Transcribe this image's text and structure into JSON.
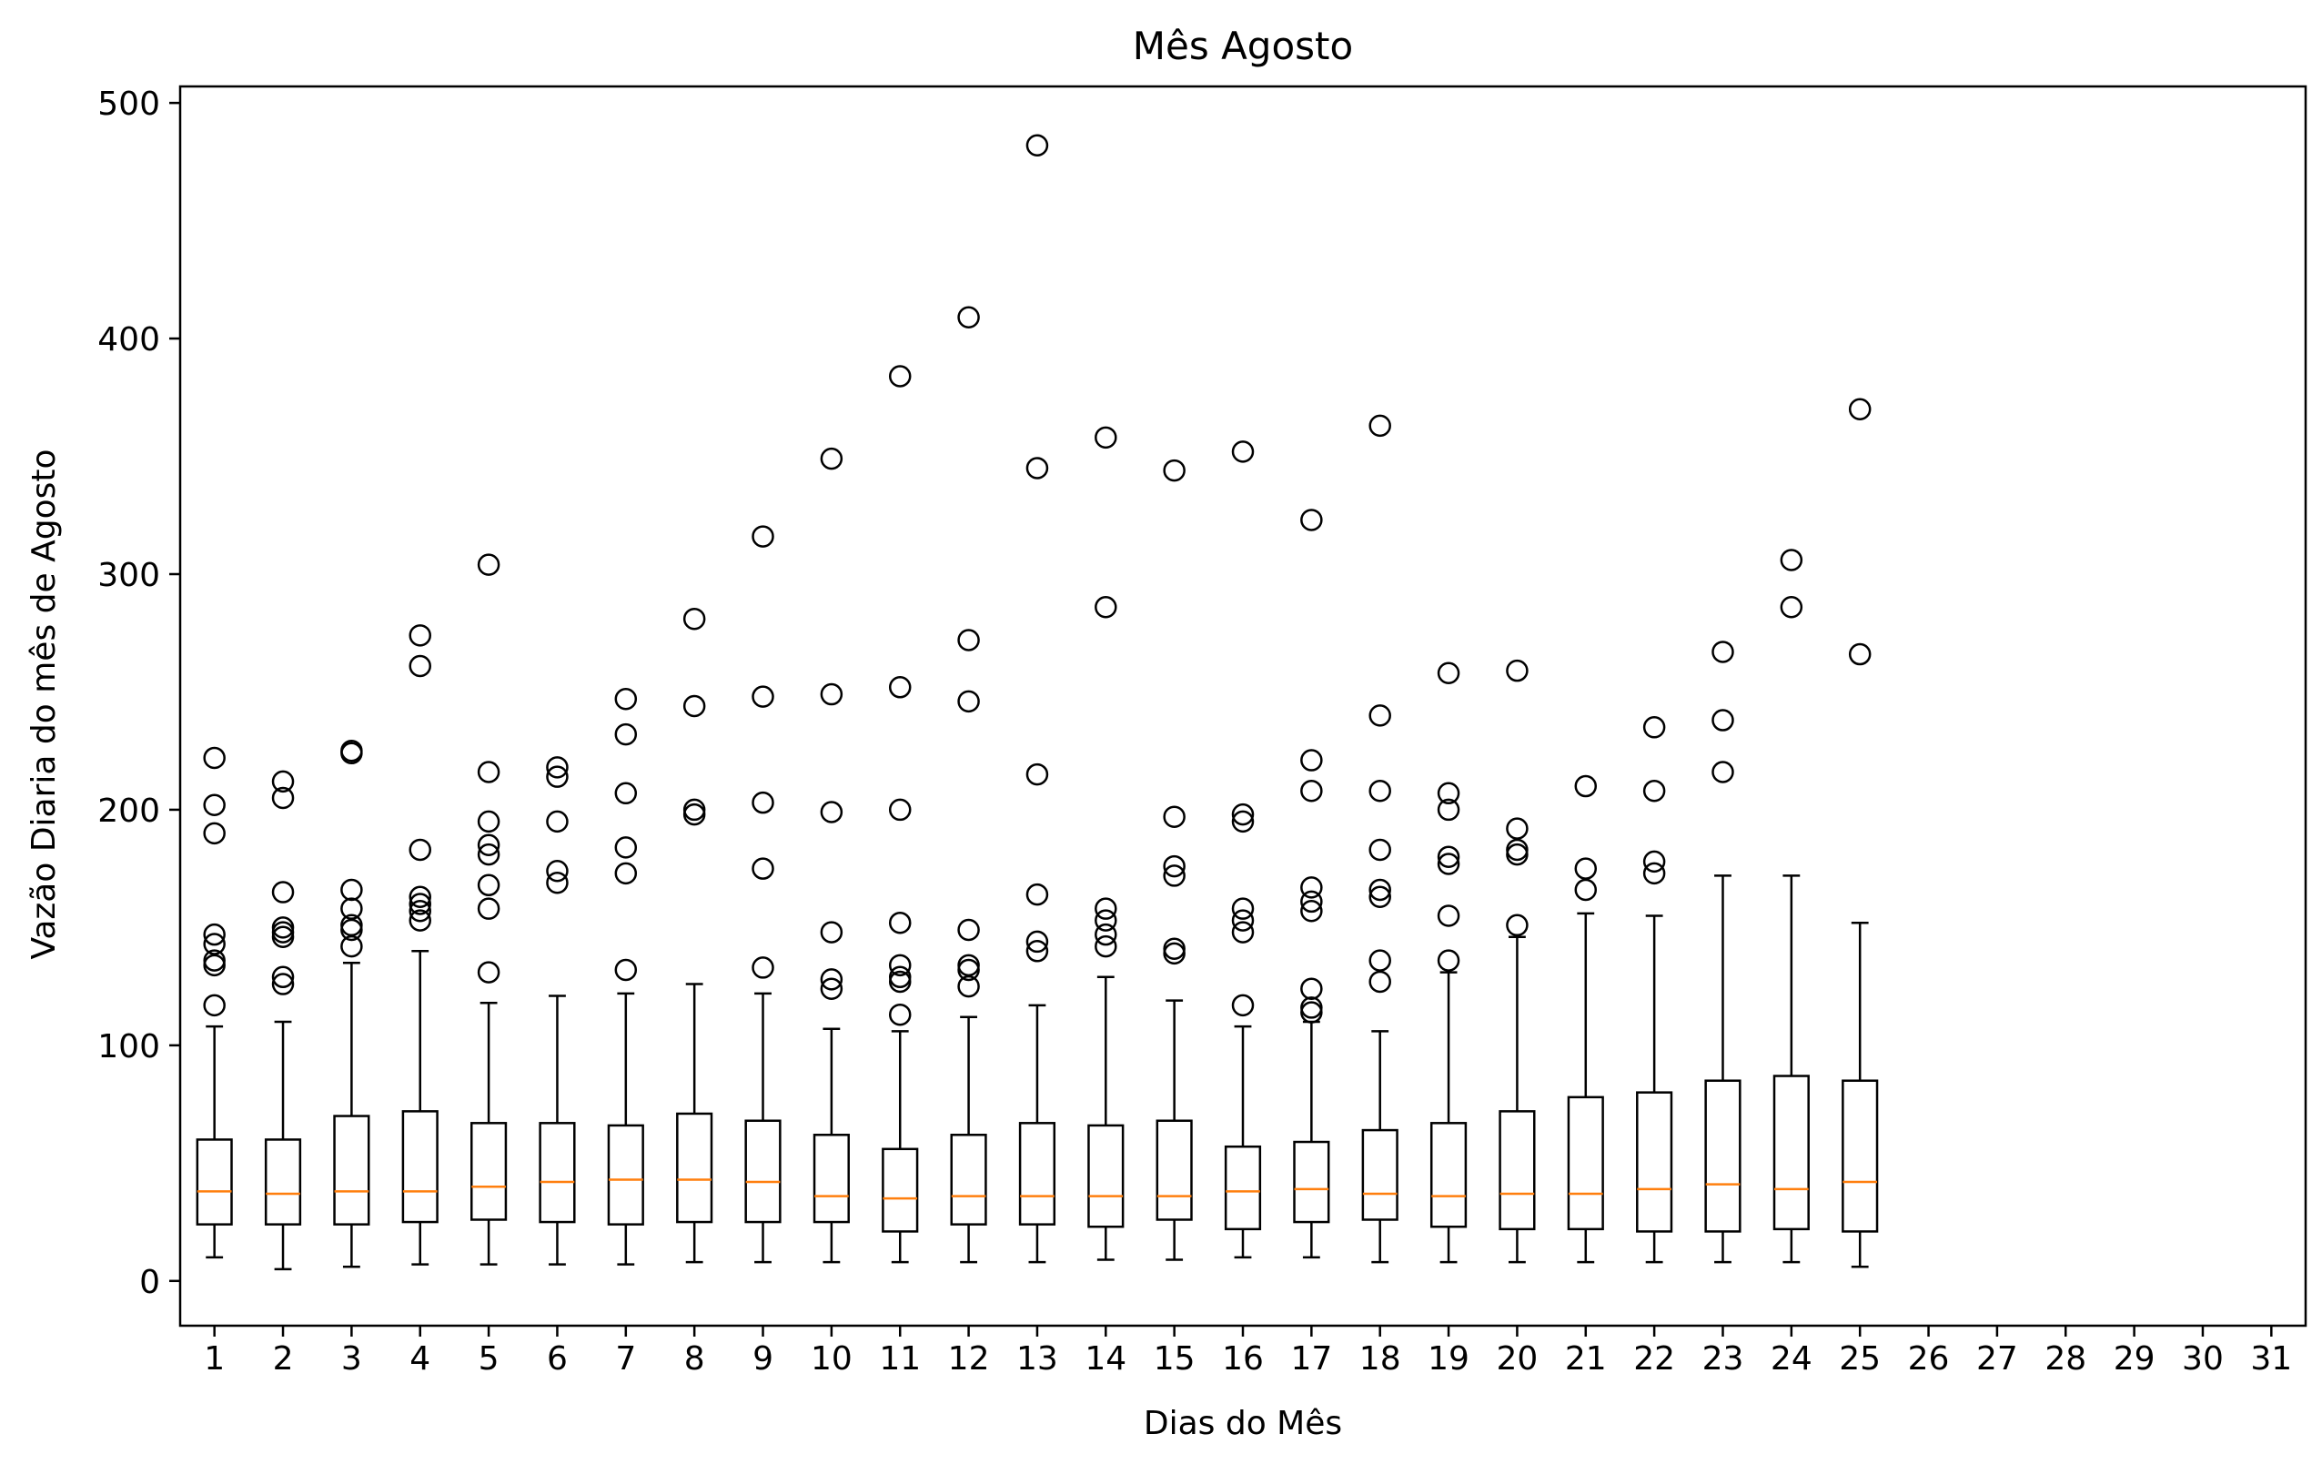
{
  "chart_data": {
    "type": "boxplot",
    "title": "Mês Agosto",
    "xlabel": "Dias do Mês",
    "ylabel": "Vazão Diaria do mês de Agosto",
    "categories": [
      "1",
      "2",
      "3",
      "4",
      "5",
      "6",
      "7",
      "8",
      "9",
      "10",
      "11",
      "12",
      "13",
      "14",
      "15",
      "16",
      "17",
      "18",
      "19",
      "20",
      "21",
      "22",
      "23",
      "24",
      "25",
      "26",
      "27",
      "28",
      "29",
      "30",
      "31"
    ],
    "xlim": [
      0.5,
      31.5
    ],
    "ylim": [
      -19,
      507
    ],
    "yticks": [
      0,
      100,
      200,
      300,
      400,
      500
    ],
    "grid": false,
    "colors": {
      "box": "#000000",
      "median": "#ff7f0e",
      "flier": "#000000"
    },
    "boxes": [
      {
        "day": "1",
        "whisker_low": 10,
        "q1": 24,
        "median": 38,
        "q3": 60,
        "whisker_high": 108,
        "fliers": [
          117,
          134,
          136,
          143,
          147,
          190,
          202,
          222
        ]
      },
      {
        "day": "2",
        "whisker_low": 5,
        "q1": 24,
        "median": 37,
        "q3": 60,
        "whisker_high": 110,
        "fliers": [
          126,
          129,
          146,
          148,
          150,
          165,
          205,
          212
        ]
      },
      {
        "day": "3",
        "whisker_low": 6,
        "q1": 24,
        "median": 38,
        "q3": 70,
        "whisker_high": 135,
        "fliers": [
          142,
          149,
          151,
          158,
          166,
          224,
          225
        ]
      },
      {
        "day": "4",
        "whisker_low": 7,
        "q1": 25,
        "median": 38,
        "q3": 72,
        "whisker_high": 140,
        "fliers": [
          153,
          157,
          160,
          163,
          183,
          261,
          274
        ]
      },
      {
        "day": "5",
        "whisker_low": 7,
        "q1": 26,
        "median": 40,
        "q3": 67,
        "whisker_high": 118,
        "fliers": [
          131,
          158,
          168,
          181,
          185,
          195,
          216,
          304
        ]
      },
      {
        "day": "6",
        "whisker_low": 7,
        "q1": 25,
        "median": 42,
        "q3": 67,
        "whisker_high": 121,
        "fliers": [
          169,
          174,
          195,
          214,
          218
        ]
      },
      {
        "day": "7",
        "whisker_low": 7,
        "q1": 24,
        "median": 43,
        "q3": 66,
        "whisker_high": 122,
        "fliers": [
          132,
          173,
          184,
          207,
          232,
          247
        ]
      },
      {
        "day": "8",
        "whisker_low": 8,
        "q1": 25,
        "median": 43,
        "q3": 71,
        "whisker_high": 126,
        "fliers": [
          198,
          200,
          244,
          281
        ]
      },
      {
        "day": "9",
        "whisker_low": 8,
        "q1": 25,
        "median": 42,
        "q3": 68,
        "whisker_high": 122,
        "fliers": [
          133,
          175,
          203,
          248,
          316
        ]
      },
      {
        "day": "10",
        "whisker_low": 8,
        "q1": 25,
        "median": 36,
        "q3": 62,
        "whisker_high": 107,
        "fliers": [
          124,
          128,
          148,
          199,
          249,
          349
        ]
      },
      {
        "day": "11",
        "whisker_low": 8,
        "q1": 21,
        "median": 35,
        "q3": 56,
        "whisker_high": 106,
        "fliers": [
          113,
          127,
          129,
          134,
          152,
          200,
          252,
          384
        ]
      },
      {
        "day": "12",
        "whisker_low": 8,
        "q1": 24,
        "median": 36,
        "q3": 62,
        "whisker_high": 112,
        "fliers": [
          125,
          132,
          134,
          149,
          246,
          272,
          409
        ]
      },
      {
        "day": "13",
        "whisker_low": 8,
        "q1": 24,
        "median": 36,
        "q3": 67,
        "whisker_high": 117,
        "fliers": [
          140,
          144,
          164,
          215,
          345,
          482
        ]
      },
      {
        "day": "14",
        "whisker_low": 9,
        "q1": 23,
        "median": 36,
        "q3": 66,
        "whisker_high": 129,
        "fliers": [
          142,
          147,
          153,
          158,
          286,
          358
        ]
      },
      {
        "day": "15",
        "whisker_low": 9,
        "q1": 26,
        "median": 36,
        "q3": 68,
        "whisker_high": 119,
        "fliers": [
          139,
          141,
          172,
          176,
          197,
          344
        ]
      },
      {
        "day": "16",
        "whisker_low": 10,
        "q1": 22,
        "median": 38,
        "q3": 57,
        "whisker_high": 108,
        "fliers": [
          117,
          148,
          153,
          158,
          195,
          198,
          352
        ]
      },
      {
        "day": "17",
        "whisker_low": 10,
        "q1": 25,
        "median": 39,
        "q3": 59,
        "whisker_high": 110,
        "fliers": [
          114,
          116,
          124,
          157,
          161,
          167,
          208,
          221,
          323
        ]
      },
      {
        "day": "18",
        "whisker_low": 8,
        "q1": 26,
        "median": 37,
        "q3": 64,
        "whisker_high": 106,
        "fliers": [
          127,
          136,
          163,
          166,
          183,
          208,
          240,
          363
        ]
      },
      {
        "day": "19",
        "whisker_low": 8,
        "q1": 23,
        "median": 36,
        "q3": 67,
        "whisker_high": 131,
        "fliers": [
          136,
          155,
          177,
          180,
          200,
          207,
          258
        ]
      },
      {
        "day": "20",
        "whisker_low": 8,
        "q1": 22,
        "median": 37,
        "q3": 72,
        "whisker_high": 146,
        "fliers": [
          151,
          181,
          183,
          192,
          259
        ]
      },
      {
        "day": "21",
        "whisker_low": 8,
        "q1": 22,
        "median": 37,
        "q3": 78,
        "whisker_high": 156,
        "fliers": [
          166,
          175,
          210
        ]
      },
      {
        "day": "22",
        "whisker_low": 8,
        "q1": 21,
        "median": 39,
        "q3": 80,
        "whisker_high": 155,
        "fliers": [
          173,
          178,
          208,
          235
        ]
      },
      {
        "day": "23",
        "whisker_low": 8,
        "q1": 21,
        "median": 41,
        "q3": 85,
        "whisker_high": 172,
        "fliers": [
          216,
          238,
          267
        ]
      },
      {
        "day": "24",
        "whisker_low": 8,
        "q1": 22,
        "median": 39,
        "q3": 87,
        "whisker_high": 172,
        "fliers": [
          286,
          306
        ]
      },
      {
        "day": "25",
        "whisker_low": 6,
        "q1": 21,
        "median": 42,
        "q3": 85,
        "whisker_high": 152,
        "fliers": [
          266,
          370
        ]
      }
    ]
  }
}
